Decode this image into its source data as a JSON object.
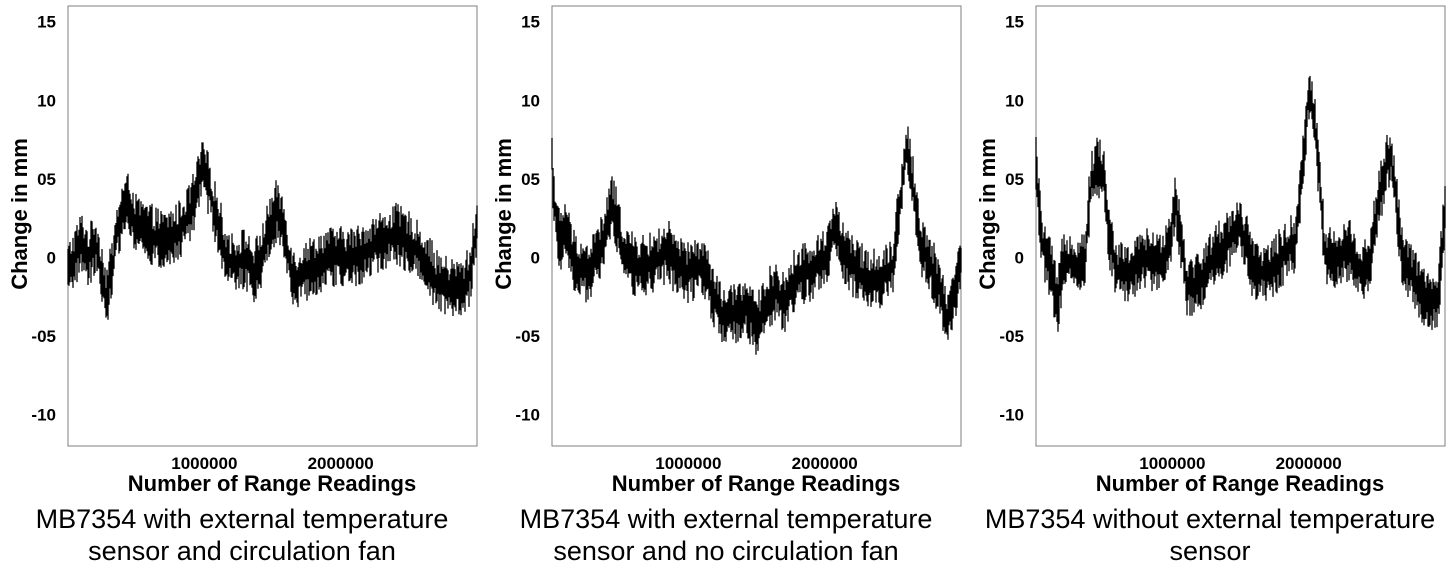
{
  "chart_data": [
    {
      "type": "line",
      "caption": [
        "MB7354 with external temperature",
        "sensor and circulation fan"
      ],
      "xlabel": "Number of Range Readings",
      "ylabel": "Change in mm",
      "xlim": [
        0,
        3000000
      ],
      "ylim": [
        -12,
        16
      ],
      "xticks": [
        1000000,
        2000000
      ],
      "xtick_labels": [
        "1000000",
        "2000000"
      ],
      "yticks": [
        15,
        10,
        5,
        0,
        -5,
        -10
      ],
      "ytick_labels": [
        "15",
        "10",
        "05",
        "0",
        "-05",
        "-10"
      ],
      "series": [
        {
          "color": "#000000",
          "points": [
            [
              0,
              -1
            ],
            [
              50000,
              0
            ],
            [
              100000,
              1
            ],
            [
              150000,
              0
            ],
            [
              200000,
              1
            ],
            [
              250000,
              -1
            ],
            [
              280000,
              -2.5
            ],
            [
              320000,
              -1
            ],
            [
              370000,
              2
            ],
            [
              400000,
              3
            ],
            [
              450000,
              3.5
            ],
            [
              500000,
              2
            ],
            [
              600000,
              1.5
            ],
            [
              700000,
              1
            ],
            [
              800000,
              1.5
            ],
            [
              880000,
              2.5
            ],
            [
              940000,
              4
            ],
            [
              980000,
              5.5
            ],
            [
              1020000,
              5
            ],
            [
              1060000,
              3.5
            ],
            [
              1110000,
              2
            ],
            [
              1160000,
              0
            ],
            [
              1220000,
              -0.5
            ],
            [
              1300000,
              0
            ],
            [
              1360000,
              -1
            ],
            [
              1420000,
              0
            ],
            [
              1480000,
              2
            ],
            [
              1530000,
              3
            ],
            [
              1580000,
              2
            ],
            [
              1620000,
              0
            ],
            [
              1660000,
              -1.5
            ],
            [
              1720000,
              -1
            ],
            [
              1800000,
              -0.5
            ],
            [
              1900000,
              0
            ],
            [
              2000000,
              0
            ],
            [
              2100000,
              0
            ],
            [
              2200000,
              0.5
            ],
            [
              2300000,
              1
            ],
            [
              2400000,
              1.5
            ],
            [
              2500000,
              1
            ],
            [
              2600000,
              0
            ],
            [
              2650000,
              -0.5
            ],
            [
              2700000,
              -1.5
            ],
            [
              2800000,
              -2
            ],
            [
              2900000,
              -2
            ],
            [
              2950000,
              -1
            ],
            [
              3000000,
              2
            ]
          ]
        }
      ]
    },
    {
      "type": "line",
      "caption": [
        "MB7354 with external temperature",
        "sensor and no circulation fan"
      ],
      "xlabel": "Number of Range Readings",
      "ylabel": "Change in mm",
      "xlim": [
        0,
        3000000
      ],
      "ylim": [
        -12,
        16
      ],
      "xticks": [
        1000000,
        2000000
      ],
      "xtick_labels": [
        "1000000",
        "2000000"
      ],
      "yticks": [
        15,
        10,
        5,
        0,
        -5,
        -10
      ],
      "ytick_labels": [
        "15",
        "10",
        "05",
        "0",
        "-05",
        "-10"
      ],
      "series": [
        {
          "color": "#000000",
          "points": [
            [
              0,
              6
            ],
            [
              30000,
              2
            ],
            [
              60000,
              1
            ],
            [
              100000,
              2
            ],
            [
              150000,
              0
            ],
            [
              200000,
              -0.5
            ],
            [
              260000,
              -1
            ],
            [
              320000,
              0
            ],
            [
              380000,
              1
            ],
            [
              440000,
              3.5
            ],
            [
              470000,
              2.5
            ],
            [
              520000,
              0.5
            ],
            [
              600000,
              -0.5
            ],
            [
              700000,
              -0.5
            ],
            [
              800000,
              0
            ],
            [
              850000,
              0.5
            ],
            [
              900000,
              -0.5
            ],
            [
              1000000,
              -1
            ],
            [
              1100000,
              -0.5
            ],
            [
              1150000,
              -1.5
            ],
            [
              1200000,
              -3
            ],
            [
              1280000,
              -4
            ],
            [
              1350000,
              -3.5
            ],
            [
              1420000,
              -3
            ],
            [
              1500000,
              -4.5
            ],
            [
              1560000,
              -3
            ],
            [
              1640000,
              -2
            ],
            [
              1700000,
              -3
            ],
            [
              1800000,
              -1
            ],
            [
              1900000,
              -1
            ],
            [
              2000000,
              0
            ],
            [
              2080000,
              2
            ],
            [
              2150000,
              0
            ],
            [
              2250000,
              -1
            ],
            [
              2400000,
              -1.5
            ],
            [
              2500000,
              -0.5
            ],
            [
              2560000,
              4
            ],
            [
              2600000,
              7
            ],
            [
              2640000,
              5
            ],
            [
              2700000,
              1
            ],
            [
              2800000,
              -1
            ],
            [
              2850000,
              -2
            ],
            [
              2900000,
              -4
            ],
            [
              2950000,
              -2.5
            ],
            [
              3000000,
              0
            ]
          ]
        }
      ]
    },
    {
      "type": "line",
      "caption": [
        "MB7354 without external temperature",
        "sensor"
      ],
      "xlabel": "Number of Range Readings",
      "ylabel": "Change in mm",
      "xlim": [
        0,
        3000000
      ],
      "ylim": [
        -12,
        16
      ],
      "xticks": [
        1000000,
        2000000
      ],
      "xtick_labels": [
        "1000000",
        "2000000"
      ],
      "yticks": [
        15,
        10,
        5,
        0,
        -5,
        -10
      ],
      "ytick_labels": [
        "15",
        "10",
        "05",
        "0",
        "-05",
        "-10"
      ],
      "series": [
        {
          "color": "#000000",
          "points": [
            [
              0,
              6
            ],
            [
              40000,
              1
            ],
            [
              100000,
              -0.5
            ],
            [
              160000,
              -3
            ],
            [
              200000,
              0
            ],
            [
              300000,
              -0.5
            ],
            [
              360000,
              0
            ],
            [
              400000,
              4.5
            ],
            [
              450000,
              6
            ],
            [
              500000,
              5
            ],
            [
              540000,
              1
            ],
            [
              600000,
              -1
            ],
            [
              700000,
              -1
            ],
            [
              800000,
              0
            ],
            [
              900000,
              -0.5
            ],
            [
              980000,
              1
            ],
            [
              1020000,
              3.5
            ],
            [
              1070000,
              1
            ],
            [
              1110000,
              -2
            ],
            [
              1200000,
              -1.5
            ],
            [
              1300000,
              0
            ],
            [
              1400000,
              1
            ],
            [
              1480000,
              2
            ],
            [
              1540000,
              1
            ],
            [
              1600000,
              -1
            ],
            [
              1700000,
              -1
            ],
            [
              1800000,
              0
            ],
            [
              1900000,
              1
            ],
            [
              1960000,
              6
            ],
            [
              2000000,
              10.5
            ],
            [
              2040000,
              9
            ],
            [
              2080000,
              5
            ],
            [
              2120000,
              0
            ],
            [
              2200000,
              0
            ],
            [
              2300000,
              0.5
            ],
            [
              2380000,
              -1
            ],
            [
              2450000,
              0
            ],
            [
              2500000,
              3
            ],
            [
              2560000,
              5.5
            ],
            [
              2600000,
              6.5
            ],
            [
              2640000,
              4
            ],
            [
              2680000,
              0
            ],
            [
              2750000,
              -1
            ],
            [
              2820000,
              -2
            ],
            [
              2880000,
              -3
            ],
            [
              2950000,
              -2.5
            ],
            [
              3000000,
              3
            ]
          ]
        }
      ]
    }
  ]
}
